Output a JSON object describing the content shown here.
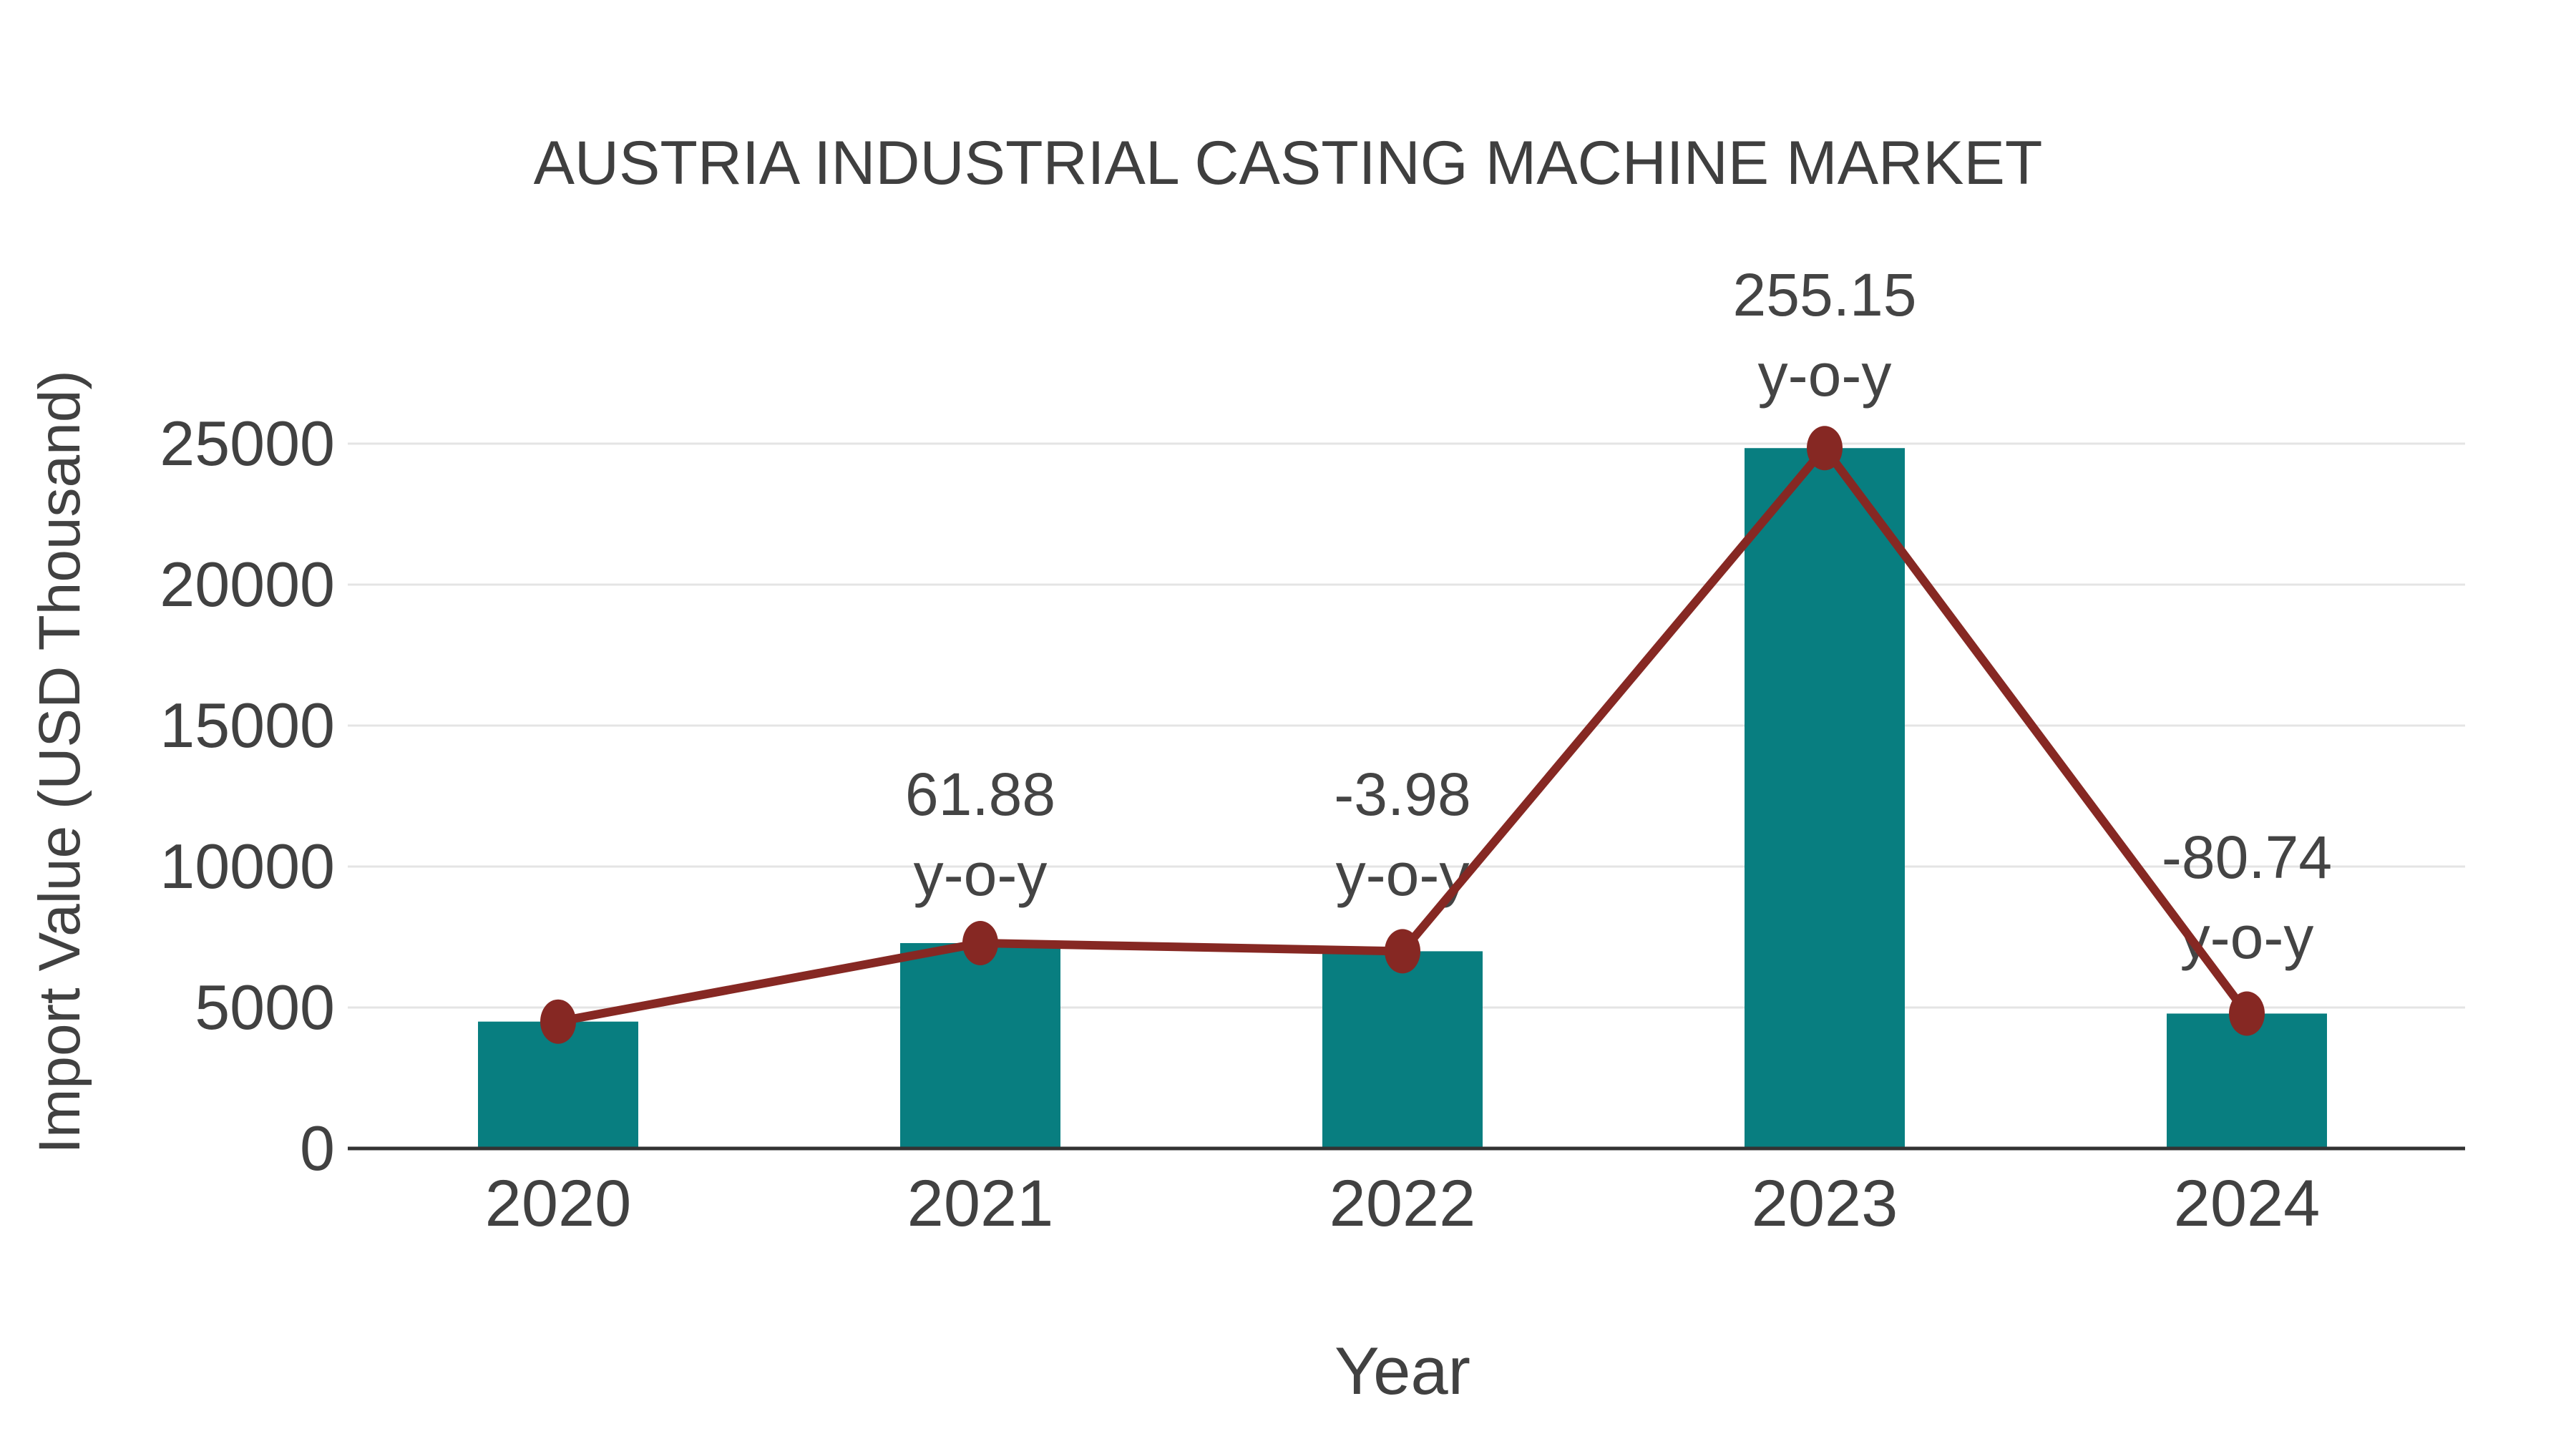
{
  "page": {
    "background": "#ffffff"
  },
  "chart_data": {
    "type": "bar",
    "title": "AUSTRIA INDUSTRIAL CASTING MACHINE MARKET",
    "xlabel": "Year",
    "ylabel": "Import Value (USD Thousand)",
    "categories": [
      "2020",
      "2021",
      "2022",
      "2023",
      "2024"
    ],
    "series": [
      {
        "name": "Import Value (USD Thousand)",
        "type": "bar",
        "color": "#087e80",
        "values": [
          4500,
          7285,
          6995,
          24842,
          4785
        ]
      },
      {
        "name": "y-o-y trend line",
        "type": "line",
        "color": "#862823",
        "values": [
          4500,
          7285,
          6995,
          24842,
          4785
        ]
      }
    ],
    "annotations": [
      {
        "category": "2021",
        "value": "61.88",
        "unit": "y-o-y"
      },
      {
        "category": "2022",
        "value": "-3.98",
        "unit": "y-o-y"
      },
      {
        "category": "2023",
        "value": "255.15",
        "unit": "y-o-y"
      },
      {
        "category": "2024",
        "value": "-80.74",
        "unit": "y-o-y"
      }
    ],
    "yticks": [
      0,
      5000,
      10000,
      15000,
      20000,
      25000
    ],
    "ylim": [
      0,
      26500
    ],
    "grid": true,
    "legend": false,
    "colors": {
      "bar": "#087e80",
      "line": "#862823",
      "marker": "#862823",
      "grid": "#e4e4e4",
      "axis": "#333333",
      "text": "#414141"
    }
  }
}
